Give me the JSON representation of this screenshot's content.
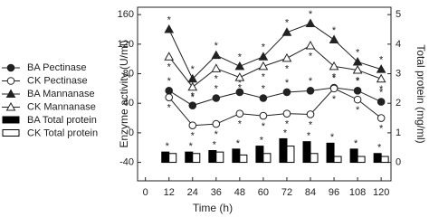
{
  "chart_data": {
    "type": "combo",
    "x_label": "Time (h)",
    "y_label": "Enzyme activity (U/ml)",
    "y2_label": "Total protein (mg/ml)",
    "x": [
      12,
      24,
      36,
      48,
      60,
      72,
      84,
      96,
      108,
      120
    ],
    "xlim": [
      -4,
      125
    ],
    "xticks": [
      0,
      12,
      24,
      36,
      48,
      60,
      72,
      84,
      96,
      108,
      120
    ],
    "ylim": [
      -65,
      170
    ],
    "yticks": [
      -40,
      0,
      40,
      80,
      120,
      160
    ],
    "y2lim": [
      -0.625,
      5.25
    ],
    "y2ticks": [
      0,
      1,
      2,
      3,
      4,
      5
    ],
    "series": [
      {
        "name": "BA Pectinase",
        "type": "line",
        "marker": "circle",
        "filled": true,
        "color": "#222",
        "values": [
          57,
          37,
          47,
          55,
          47,
          55,
          57,
          61,
          57,
          42
        ],
        "stars": [
          "*",
          "*",
          "*",
          "*",
          "*",
          "*",
          "*",
          "*",
          "*",
          "*"
        ]
      },
      {
        "name": "CK Pectinase",
        "type": "line",
        "marker": "circle",
        "filled": false,
        "color": "#222",
        "values": [
          48,
          10,
          12,
          26,
          23,
          26,
          25,
          60,
          45,
          20
        ],
        "stars": [
          "*",
          "*",
          "*",
          "*",
          "*",
          "*",
          "*",
          "*",
          "*",
          "*"
        ]
      },
      {
        "name": "BA Mannanase",
        "type": "line",
        "marker": "triangle",
        "filled": true,
        "color": "#222",
        "values": [
          140,
          73,
          105,
          90,
          103,
          136,
          148,
          126,
          96,
          86
        ],
        "stars": [
          "*",
          "*",
          "*",
          "*",
          "*",
          "*",
          "*",
          "*",
          "*",
          "*"
        ]
      },
      {
        "name": "CK Mannanase",
        "type": "line",
        "marker": "triangle",
        "filled": false,
        "color": "#222",
        "values": [
          103,
          62,
          87,
          75,
          90,
          101,
          118,
          90,
          85,
          73
        ],
        "stars": [
          "*",
          "*",
          "*",
          "*",
          "*",
          "*",
          "*",
          "*",
          "*",
          "*"
        ]
      },
      {
        "name": "BA Total protein",
        "type": "bar",
        "axis": "y2",
        "filled": true,
        "color": "#000",
        "values": [
          0.35,
          0.35,
          0.4,
          0.45,
          0.55,
          0.8,
          0.7,
          0.65,
          0.45,
          0.3
        ],
        "stars": [
          "*",
          "*",
          "*",
          "*",
          "*",
          "*",
          "*",
          "*",
          "*",
          "*"
        ]
      },
      {
        "name": "CK Total protein",
        "type": "bar",
        "axis": "y2",
        "filled": false,
        "color": "#000",
        "values": [
          0.3,
          0.3,
          0.35,
          0.25,
          0.3,
          0.55,
          0.3,
          0.2,
          0.2,
          0.2
        ]
      }
    ]
  }
}
